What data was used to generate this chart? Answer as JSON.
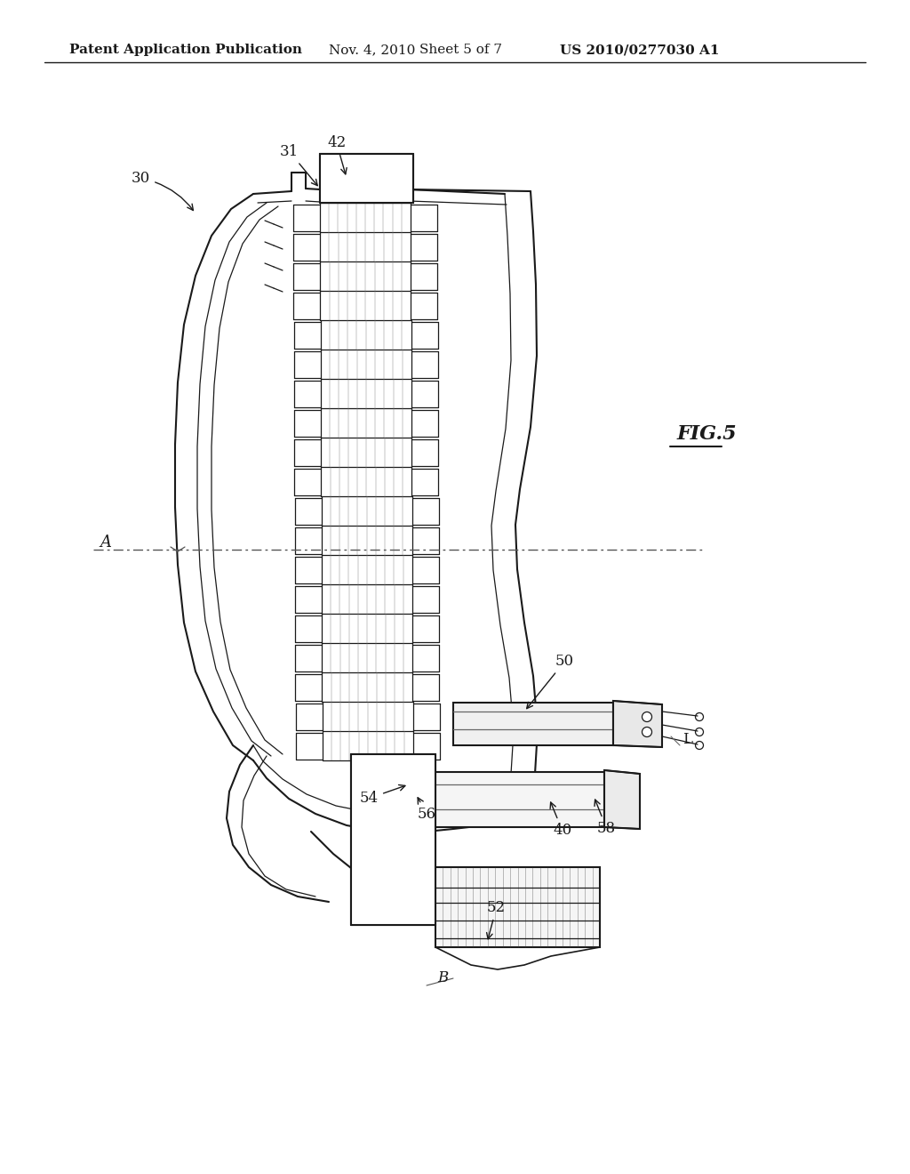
{
  "bg_color": "#ffffff",
  "line_color": "#1a1a1a",
  "gray_color": "#888888",
  "header_text": "Patent Application Publication",
  "header_date": "Nov. 4, 2010",
  "header_sheet": "Sheet 5 of 7",
  "header_patent": "US 2010/0277030 A1",
  "fig_label": "FIG.5",
  "header_fontsize": 11,
  "label_fontsize": 12,
  "fig_fontsize": 16
}
